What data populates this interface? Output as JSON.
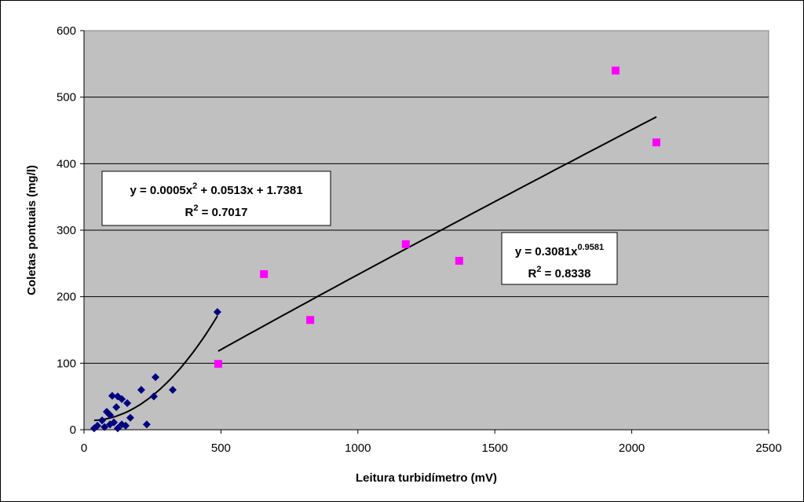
{
  "chart_data": {
    "type": "scatter",
    "xlabel": "Leitura turbidímetro (mV)",
    "ylabel": "Coletas pontuais (mg/l)",
    "xlim": [
      0,
      2500
    ],
    "xticks": [
      0,
      500,
      1000,
      1500,
      2000,
      2500
    ],
    "ylim": [
      0,
      600
    ],
    "yticks": [
      0,
      100,
      200,
      300,
      400,
      500,
      600
    ],
    "grid": true,
    "series": [
      {
        "color": "#000080",
        "marker": "diamond",
        "trendline": "polynomial",
        "x": [
          487,
          261,
          255,
          324,
          209,
          229,
          103,
          123,
          138,
          158,
          118,
          83,
          95,
          169,
          66,
          109,
          138,
          49,
          75,
          123,
          152,
          95,
          37
        ],
        "values": [
          177,
          79,
          50,
          60,
          60,
          8,
          51,
          50,
          46,
          40,
          34,
          27,
          22,
          18,
          14,
          11,
          8,
          6,
          4,
          2,
          6,
          8,
          2
        ]
      },
      {
        "color": "#ff00ff",
        "marker": "square",
        "trendline": "power",
        "x": [
          490,
          657,
          826,
          1175,
          1370,
          1941,
          2090
        ],
        "values": [
          99,
          234,
          165,
          279,
          254,
          540,
          432
        ]
      }
    ],
    "annotations": [
      {
        "lines": [
          [
            "y = 0.0005x",
            "2",
            " + 0.0513x + 1.7381"
          ],
          [
            "R",
            "2",
            " = 0.7017"
          ]
        ]
      },
      {
        "lines": [
          [
            "y = 0.3081x",
            "0.9581"
          ],
          [
            "R",
            "2",
            " = 0.8338"
          ]
        ]
      }
    ]
  }
}
